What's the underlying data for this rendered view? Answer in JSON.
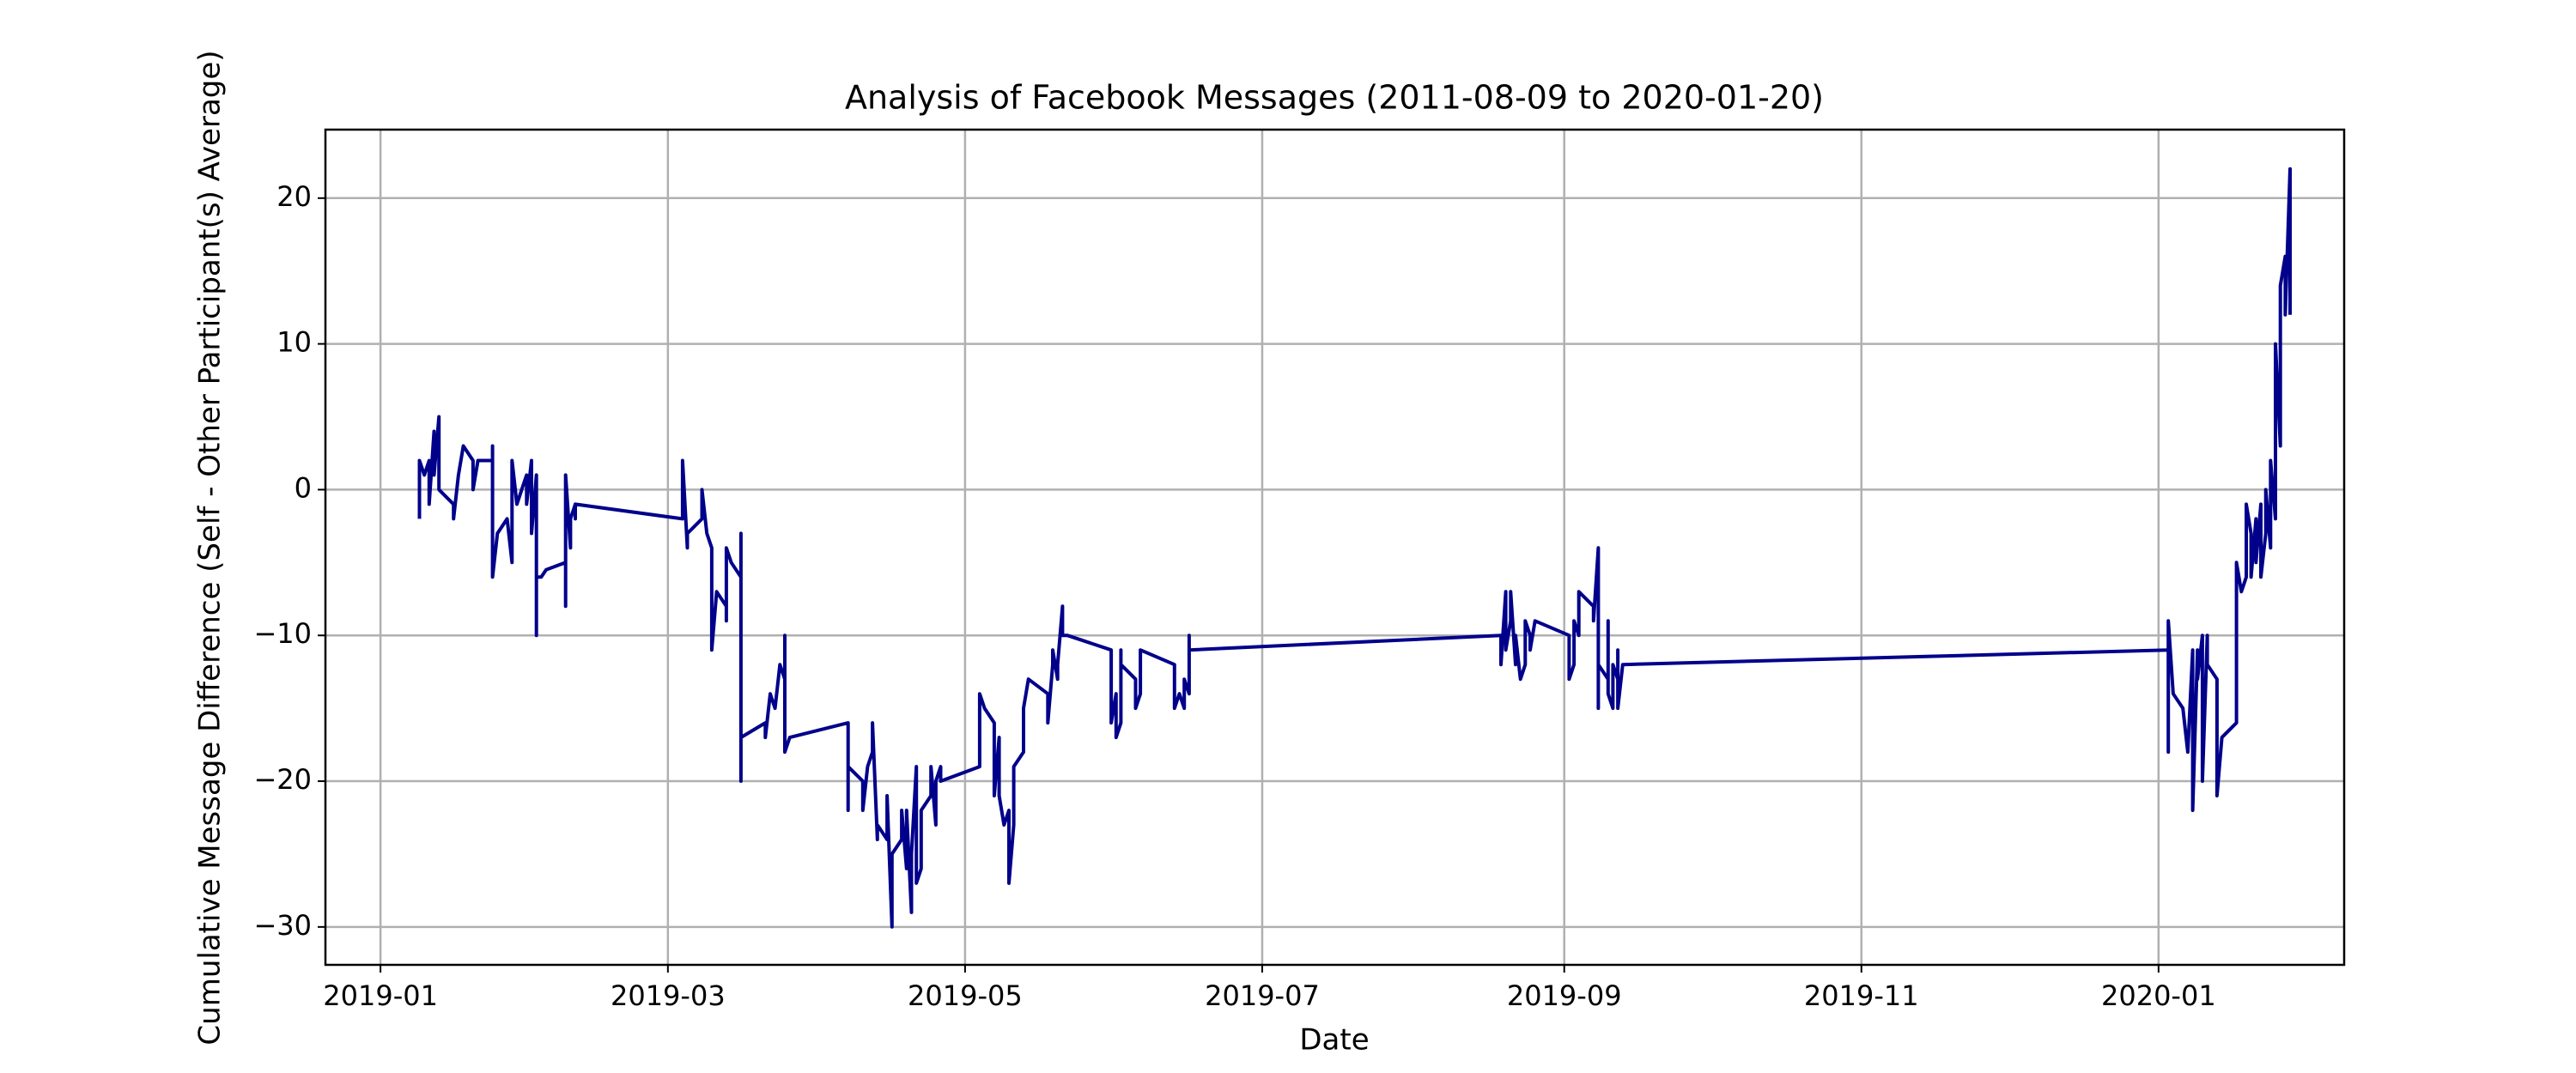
{
  "chart_data": {
    "type": "line",
    "title": "Analysis of Facebook Messages (2011-08-09 to 2020-01-20)",
    "x_label": "Date",
    "y_label": "Cumulative Message Difference (Self - Other Participant(s) Average)",
    "color": "#00008b",
    "grid": true,
    "xlim": [
      -11.3,
      403.1
    ],
    "xticks": [
      {
        "value": 0,
        "label": "2019-01"
      },
      {
        "value": 59,
        "label": "2019-03"
      },
      {
        "value": 120,
        "label": "2019-05"
      },
      {
        "value": 181,
        "label": "2019-07"
      },
      {
        "value": 243,
        "label": "2019-09"
      },
      {
        "value": 304,
        "label": "2019-11"
      },
      {
        "value": 365,
        "label": "2020-01"
      }
    ],
    "ylim": [
      -32.6,
      24.7
    ],
    "yticks": [
      {
        "value": -30,
        "label": "−30"
      },
      {
        "value": -20,
        "label": "−20"
      },
      {
        "value": -10,
        "label": "−10"
      },
      0,
      10,
      20
    ],
    "x": [
      8,
      8,
      9,
      10,
      10,
      11,
      11,
      12,
      12,
      15,
      15,
      16,
      17,
      19,
      19,
      20,
      23,
      23,
      23,
      24,
      26,
      27,
      27,
      28,
      29,
      30,
      30,
      31,
      31,
      32,
      32,
      32,
      33,
      34,
      38,
      38,
      38,
      39,
      39,
      40,
      40,
      40,
      62,
      62,
      63,
      63,
      66,
      66,
      67,
      68,
      68,
      69,
      71,
      71,
      71,
      72,
      74,
      74,
      74,
      74,
      79,
      79,
      80,
      81,
      82,
      83,
      83,
      83,
      84,
      96,
      96,
      96,
      99,
      99,
      100,
      101,
      101,
      102,
      102,
      104,
      104,
      105,
      105,
      107,
      107,
      108,
      108,
      109,
      109,
      110,
      110,
      111,
      111,
      113,
      113,
      114,
      114,
      115,
      115,
      123,
      123,
      124,
      126,
      126,
      127,
      127,
      128,
      129,
      129,
      130,
      130,
      132,
      132,
      133,
      137,
      137,
      138,
      138,
      139,
      139,
      140,
      140,
      141,
      150,
      150,
      151,
      151,
      152,
      152,
      152,
      155,
      155,
      156,
      156,
      163,
      163,
      164,
      165,
      165,
      166,
      166,
      166,
      230,
      230,
      231,
      231,
      232,
      232,
      233,
      233,
      234,
      235,
      235,
      236,
      236,
      237,
      244,
      244,
      245,
      245,
      246,
      246,
      249,
      249,
      250,
      250,
      250,
      252,
      252,
      252,
      253,
      253,
      254,
      254,
      254,
      255,
      367,
      367,
      367,
      368,
      370,
      371,
      372,
      372,
      373,
      373,
      374,
      374,
      375,
      375,
      377,
      377,
      378,
      381,
      381,
      382,
      383,
      383,
      384,
      384,
      385,
      385,
      386,
      386,
      387,
      387,
      388,
      388,
      389,
      389,
      389,
      390,
      390,
      391,
      391,
      392,
      392
    ],
    "values": [
      -2,
      2,
      1,
      2,
      -1,
      4,
      1,
      5,
      0,
      -1,
      -2,
      1,
      3,
      2,
      0,
      2,
      2,
      3,
      -6,
      -3,
      -2,
      -5,
      2,
      -1,
      0,
      1,
      -1,
      2,
      -3,
      1,
      -10,
      -6,
      -6,
      -5.5,
      -5,
      -8,
      1,
      -4,
      -2,
      -1,
      -2,
      -1,
      -2,
      2,
      -4,
      -3,
      -2,
      0,
      -3,
      -4,
      -11,
      -7,
      -8,
      -9,
      -4,
      -5,
      -6,
      -3,
      -20,
      -17,
      -16,
      -17,
      -14,
      -15,
      -12,
      -13,
      -10,
      -18,
      -17,
      -16,
      -22,
      -19,
      -20,
      -22,
      -19,
      -18,
      -16,
      -24,
      -23,
      -24,
      -21,
      -30,
      -25,
      -24,
      -22,
      -26,
      -22,
      -29,
      -25,
      -19,
      -27,
      -26,
      -22,
      -21,
      -19,
      -23,
      -20,
      -19,
      -20,
      -19,
      -14,
      -15,
      -16,
      -21,
      -17,
      -21,
      -23,
      -22,
      -27,
      -23,
      -19,
      -18,
      -15,
      -13,
      -14,
      -16,
      -12,
      -11,
      -13,
      -12,
      -8,
      -10,
      -10,
      -11,
      -16,
      -14,
      -17,
      -16,
      -11,
      -12,
      -13,
      -15,
      -14,
      -11,
      -12,
      -15,
      -14,
      -15,
      -13,
      -14,
      -10,
      -11,
      -10,
      -12,
      -7,
      -11,
      -9,
      -7,
      -12,
      -10,
      -13,
      -12,
      -9,
      -10,
      -11,
      -9,
      -10,
      -13,
      -12,
      -9,
      -10,
      -7,
      -8,
      -9,
      -4,
      -15,
      -12,
      -13,
      -9,
      -14,
      -15,
      -12,
      -13,
      -11,
      -15,
      -12,
      -11,
      -18,
      -9,
      -14,
      -15,
      -18,
      -11,
      -22,
      -11,
      -13,
      -10,
      -20,
      -10,
      -12,
      -13,
      -21,
      -17,
      -16,
      -5,
      -7,
      -6,
      -1,
      -3,
      -6,
      -2,
      -5,
      -1,
      -6,
      -3,
      0,
      -4,
      2,
      -2,
      7,
      10,
      3,
      14,
      16,
      12,
      22,
      12
    ]
  }
}
